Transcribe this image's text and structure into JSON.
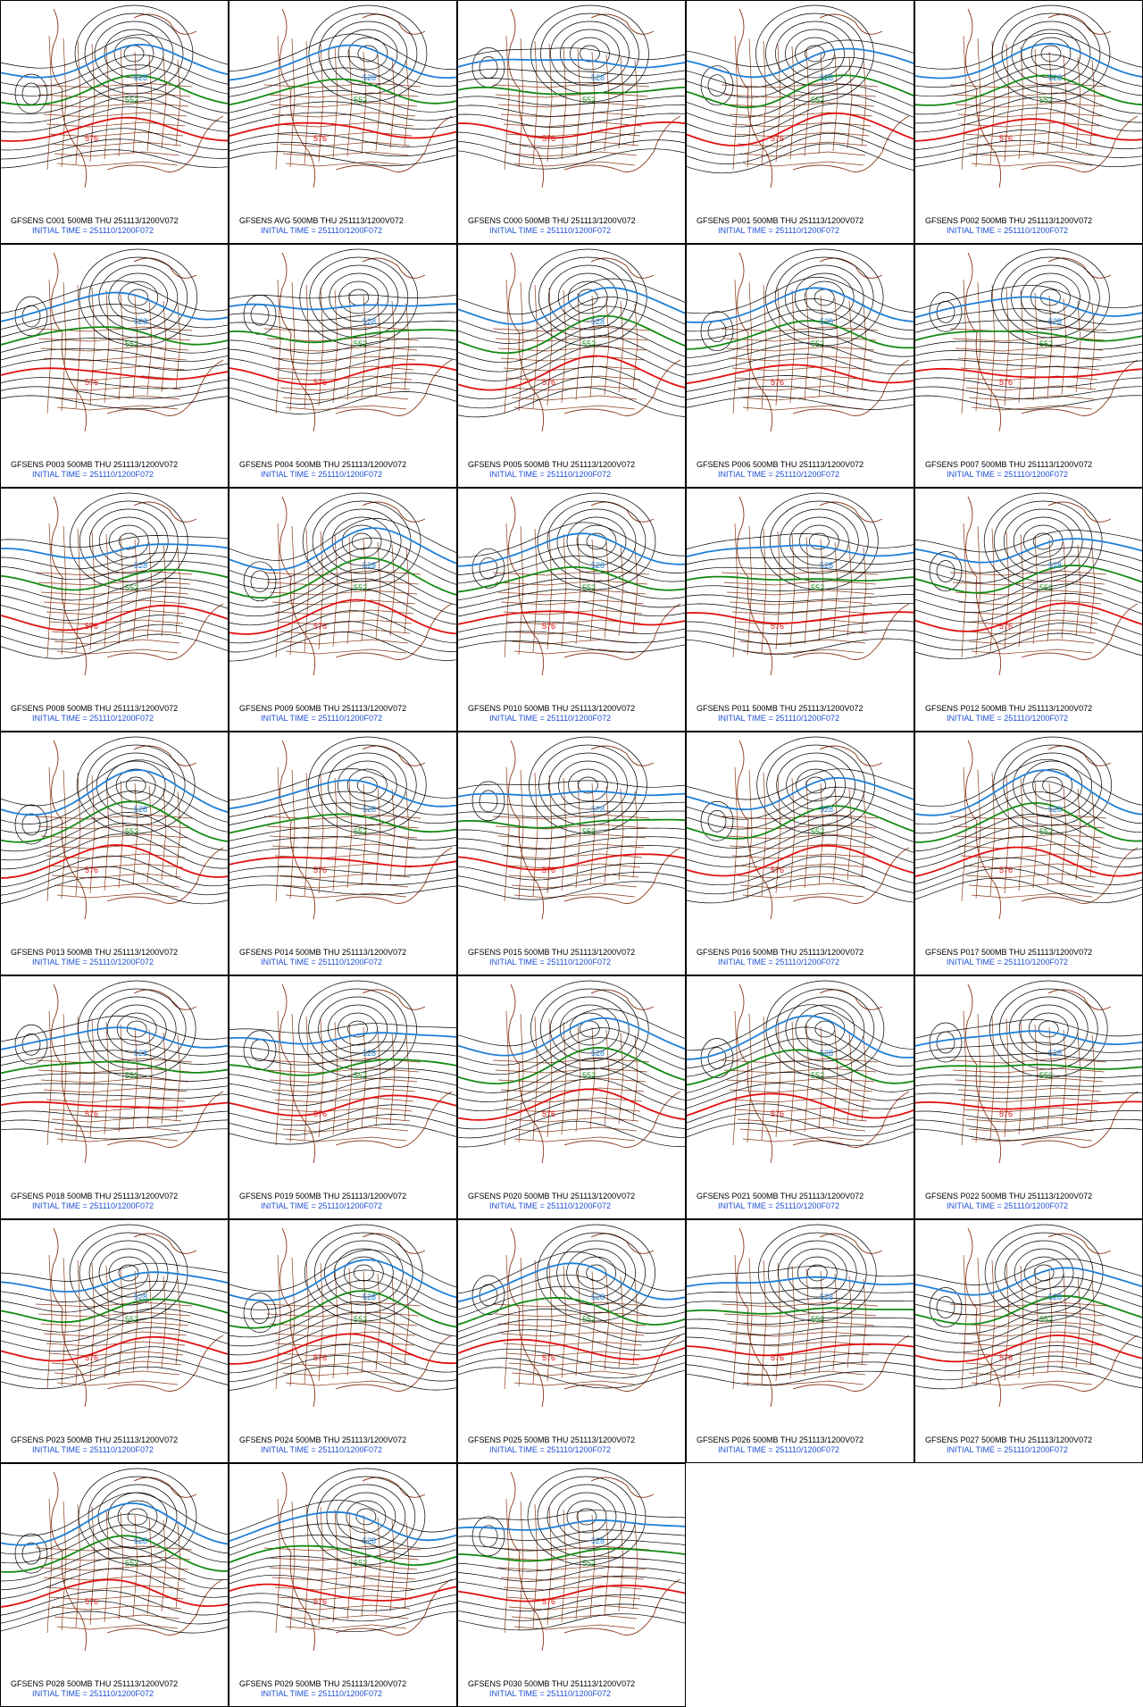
{
  "panels": [
    {
      "title": "GFSENS C001 500MB THU 251113/1200V072",
      "subtitle": "INITIAL TIME = 251110/1200F072",
      "contour_labels": [
        "528",
        "552",
        "576"
      ]
    },
    {
      "title": "GFSENS AVG 500MB THU 251113/1200V072",
      "subtitle": "INITIAL TIME = 251110/1200F072",
      "contour_labels": [
        "528",
        "552",
        "576"
      ]
    },
    {
      "title": "GFSENS C000 500MB THU 251113/1200V072",
      "subtitle": "INITIAL TIME = 251110/1200F072",
      "contour_labels": [
        "528",
        "552",
        "576"
      ]
    },
    {
      "title": "GFSENS P001 500MB THU 251113/1200V072",
      "subtitle": "INITIAL TIME = 251110/1200F072",
      "contour_labels": [
        "528",
        "552",
        "576"
      ]
    },
    {
      "title": "GFSENS P002 500MB THU 251113/1200V072",
      "subtitle": "INITIAL TIME = 251110/1200F072",
      "contour_labels": [
        "528",
        "552",
        "576"
      ]
    },
    {
      "title": "GFSENS P003 500MB THU 251113/1200V072",
      "subtitle": "INITIAL TIME = 251110/1200F072",
      "contour_labels": [
        "528",
        "552",
        "576"
      ]
    },
    {
      "title": "GFSENS P004 500MB THU 251113/1200V072",
      "subtitle": "INITIAL TIME = 251110/1200F072",
      "contour_labels": [
        "528",
        "552",
        "576"
      ]
    },
    {
      "title": "GFSENS P005 500MB THU 251113/1200V072",
      "subtitle": "INITIAL TIME = 251110/1200F072",
      "contour_labels": [
        "528",
        "552",
        "576"
      ]
    },
    {
      "title": "GFSENS P006 500MB THU 251113/1200V072",
      "subtitle": "INITIAL TIME = 251110/1200F072",
      "contour_labels": [
        "528",
        "552",
        "576"
      ]
    },
    {
      "title": "GFSENS P007 500MB THU 251113/1200V072",
      "subtitle": "INITIAL TIME = 251110/1200F072",
      "contour_labels": [
        "528",
        "552",
        "576"
      ]
    },
    {
      "title": "GFSENS P008 500MB THU 251113/1200V072",
      "subtitle": "INITIAL TIME = 251110/1200F072",
      "contour_labels": [
        "528",
        "552",
        "576"
      ]
    },
    {
      "title": "GFSENS P009 500MB THU 251113/1200V072",
      "subtitle": "INITIAL TIME = 251110/1200F072",
      "contour_labels": [
        "528",
        "552",
        "576"
      ]
    },
    {
      "title": "GFSENS P010 500MB THU 251113/1200V072",
      "subtitle": "INITIAL TIME = 251110/1200F072",
      "contour_labels": [
        "528",
        "552",
        "576"
      ]
    },
    {
      "title": "GFSENS P011 500MB THU 251113/1200V072",
      "subtitle": "INITIAL TIME = 251110/1200F072",
      "contour_labels": [
        "528",
        "552",
        "576"
      ]
    },
    {
      "title": "GFSENS P012 500MB THU 251113/1200V072",
      "subtitle": "INITIAL TIME = 251110/1200F072",
      "contour_labels": [
        "528",
        "552",
        "576"
      ]
    },
    {
      "title": "GFSENS P013 500MB THU 251113/1200V072",
      "subtitle": "INITIAL TIME = 251110/1200F072",
      "contour_labels": [
        "528",
        "552",
        "576"
      ]
    },
    {
      "title": "GFSENS P014 500MB THU 251113/1200V072",
      "subtitle": "INITIAL TIME = 251110/1200F072",
      "contour_labels": [
        "528",
        "552",
        "576"
      ]
    },
    {
      "title": "GFSENS P015 500MB THU 251113/1200V072",
      "subtitle": "INITIAL TIME = 251110/1200F072",
      "contour_labels": [
        "528",
        "552",
        "576"
      ]
    },
    {
      "title": "GFSENS P016 500MB THU 251113/1200V072",
      "subtitle": "INITIAL TIME = 251110/1200F072",
      "contour_labels": [
        "528",
        "552",
        "576"
      ]
    },
    {
      "title": "GFSENS P017 500MB THU 251113/1200V072",
      "subtitle": "INITIAL TIME = 251110/1200F072",
      "contour_labels": [
        "528",
        "552",
        "576"
      ]
    },
    {
      "title": "GFSENS P018 500MB THU 251113/1200V072",
      "subtitle": "INITIAL TIME = 251110/1200F072",
      "contour_labels": [
        "528",
        "552",
        "576"
      ]
    },
    {
      "title": "GFSENS P019 500MB THU 251113/1200V072",
      "subtitle": "INITIAL TIME = 251110/1200F072",
      "contour_labels": [
        "528",
        "552",
        "576"
      ]
    },
    {
      "title": "GFSENS P020 500MB THU 251113/1200V072",
      "subtitle": "INITIAL TIME = 251110/1200F072",
      "contour_labels": [
        "528",
        "552",
        "576"
      ]
    },
    {
      "title": "GFSENS P021 500MB THU 251113/1200V072",
      "subtitle": "INITIAL TIME = 251110/1200F072",
      "contour_labels": [
        "528",
        "552",
        "576"
      ]
    },
    {
      "title": "GFSENS P022 500MB THU 251113/1200V072",
      "subtitle": "INITIAL TIME = 251110/1200F072",
      "contour_labels": [
        "528",
        "552",
        "576"
      ]
    },
    {
      "title": "GFSENS P023 500MB THU 251113/1200V072",
      "subtitle": "INITIAL TIME = 251110/1200F072",
      "contour_labels": [
        "528",
        "552",
        "576"
      ]
    },
    {
      "title": "GFSENS P024 500MB THU 251113/1200V072",
      "subtitle": "INITIAL TIME = 251110/1200F072",
      "contour_labels": [
        "528",
        "552",
        "576"
      ]
    },
    {
      "title": "GFSENS P025 500MB THU 251113/1200V072",
      "subtitle": "INITIAL TIME = 251110/1200F072",
      "contour_labels": [
        "528",
        "552",
        "576"
      ]
    },
    {
      "title": "GFSENS P026 500MB THU 251113/1200V072",
      "subtitle": "INITIAL TIME = 251110/1200F072",
      "contour_labels": [
        "528",
        "552",
        "576"
      ]
    },
    {
      "title": "GFSENS P027 500MB THU 251113/1200V072",
      "subtitle": "INITIAL TIME = 251110/1200F072",
      "contour_labels": [
        "528",
        "552",
        "576"
      ]
    },
    {
      "title": "GFSENS P028 500MB THU 251113/1200V072",
      "subtitle": "INITIAL TIME = 251110/1200F072",
      "contour_labels": [
        "528",
        "552",
        "576"
      ]
    },
    {
      "title": "GFSENS P029 500MB THU 251113/1200V072",
      "subtitle": "INITIAL TIME = 251110/1200F072",
      "contour_labels": [
        "528",
        "552",
        "576"
      ]
    },
    {
      "title": "GFSENS P030 500MB THU 251113/1200V072",
      "subtitle": "INITIAL TIME = 251110/1200F072",
      "contour_labels": [
        "528",
        "552",
        "576"
      ]
    }
  ]
}
